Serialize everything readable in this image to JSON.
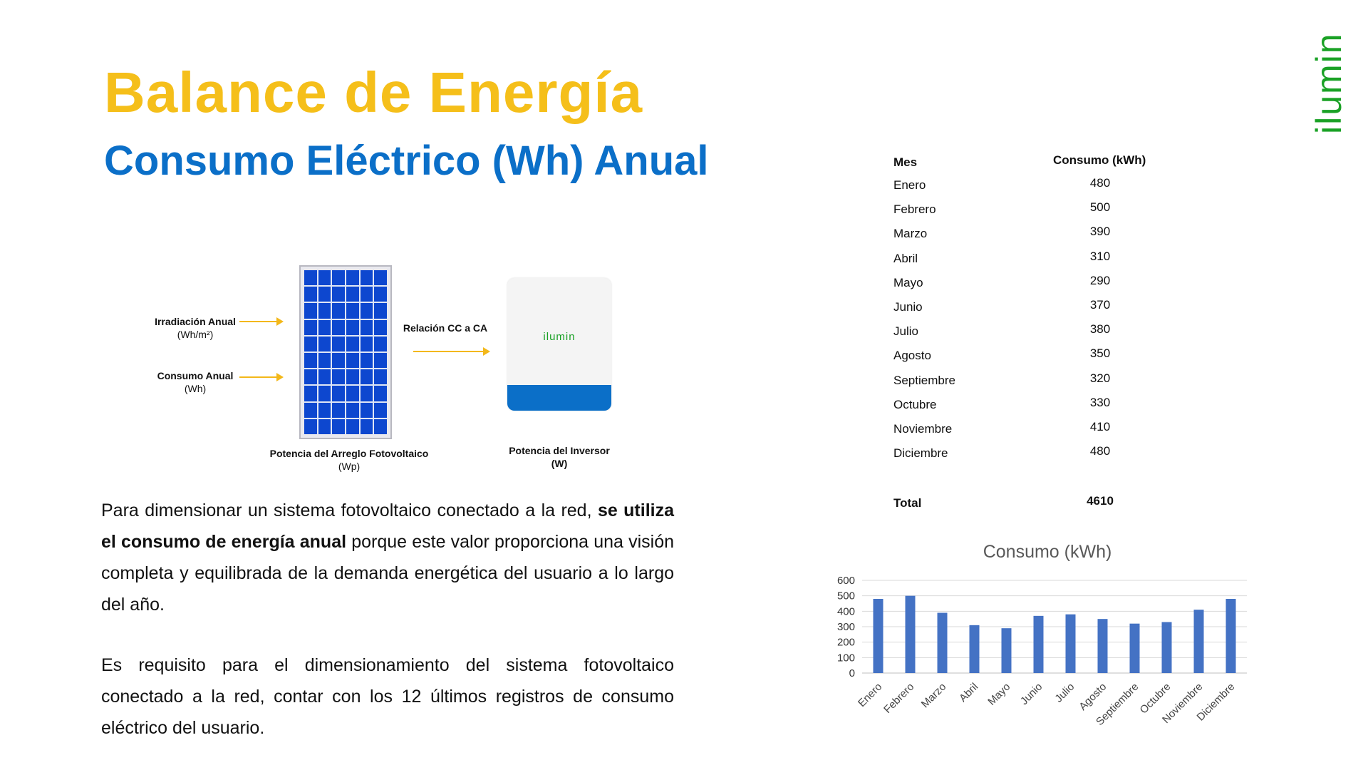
{
  "title": "Balance de Energía",
  "subtitle": "Consumo Eléctrico (Wh) Anual",
  "brand": "ilumin",
  "diagram": {
    "irradiation_label": "Irradiación Anual",
    "irradiation_unit": "(Wh/m²)",
    "consumption_label": "Consumo Anual",
    "consumption_unit": "(Wh)",
    "ratio_label": "Relación CC a CA",
    "array_label": "Potencia del Arreglo Fotovoltaico",
    "array_unit": "(Wp)",
    "inverter_label": "Potencia del Inversor",
    "inverter_unit": "(W)",
    "inverter_brand": "ilumin"
  },
  "paragraph1": {
    "part1": "Para dimensionar un sistema fotovoltaico conectado a la red, ",
    "bold": "se utiliza el consumo de energía anual",
    "part2": " porque este valor proporciona una visión completa y equilibrada de la demanda energética del usuario a lo largo del año."
  },
  "paragraph2": "Es requisito para el dimensionamiento del sistema fotovoltaico conectado a la red, contar con los 12 últimos registros de consumo eléctrico del usuario.",
  "table": {
    "col_month": "Mes",
    "col_value": "Consumo (kWh)",
    "rows": [
      {
        "month": "Enero",
        "value": "480"
      },
      {
        "month": "Febrero",
        "value": "500"
      },
      {
        "month": "Marzo",
        "value": "390"
      },
      {
        "month": "Abril",
        "value": "310"
      },
      {
        "month": "Mayo",
        "value": "290"
      },
      {
        "month": "Junio",
        "value": "370"
      },
      {
        "month": "Julio",
        "value": "380"
      },
      {
        "month": "Agosto",
        "value": "350"
      },
      {
        "month": "Septiembre",
        "value": "320"
      },
      {
        "month": "Octubre",
        "value": "330"
      },
      {
        "month": "Noviembre",
        "value": "410"
      },
      {
        "month": "Diciembre",
        "value": "480"
      }
    ],
    "total_label": "Total",
    "total_value": "4610"
  },
  "colors": {
    "title": "#f5bf1a",
    "subtitle": "#0b6fc8",
    "brand": "#1aa125",
    "bar": "#4472c4",
    "arrow": "#f3b81a"
  },
  "chart_data": {
    "type": "bar",
    "title": "Consumo (kWh)",
    "categories": [
      "Enero",
      "Febrero",
      "Marzo",
      "Abril",
      "Mayo",
      "Junio",
      "Julio",
      "Agosto",
      "Septiembre",
      "Octubre",
      "Noviembre",
      "Diciembre"
    ],
    "values": [
      480,
      500,
      390,
      310,
      290,
      370,
      380,
      350,
      320,
      330,
      410,
      480
    ],
    "ylim": [
      0,
      600
    ],
    "yticks": [
      "0",
      "100",
      "200",
      "300",
      "400",
      "500",
      "600"
    ],
    "xlabel": "",
    "ylabel": "",
    "grid": true,
    "legend": "none"
  }
}
